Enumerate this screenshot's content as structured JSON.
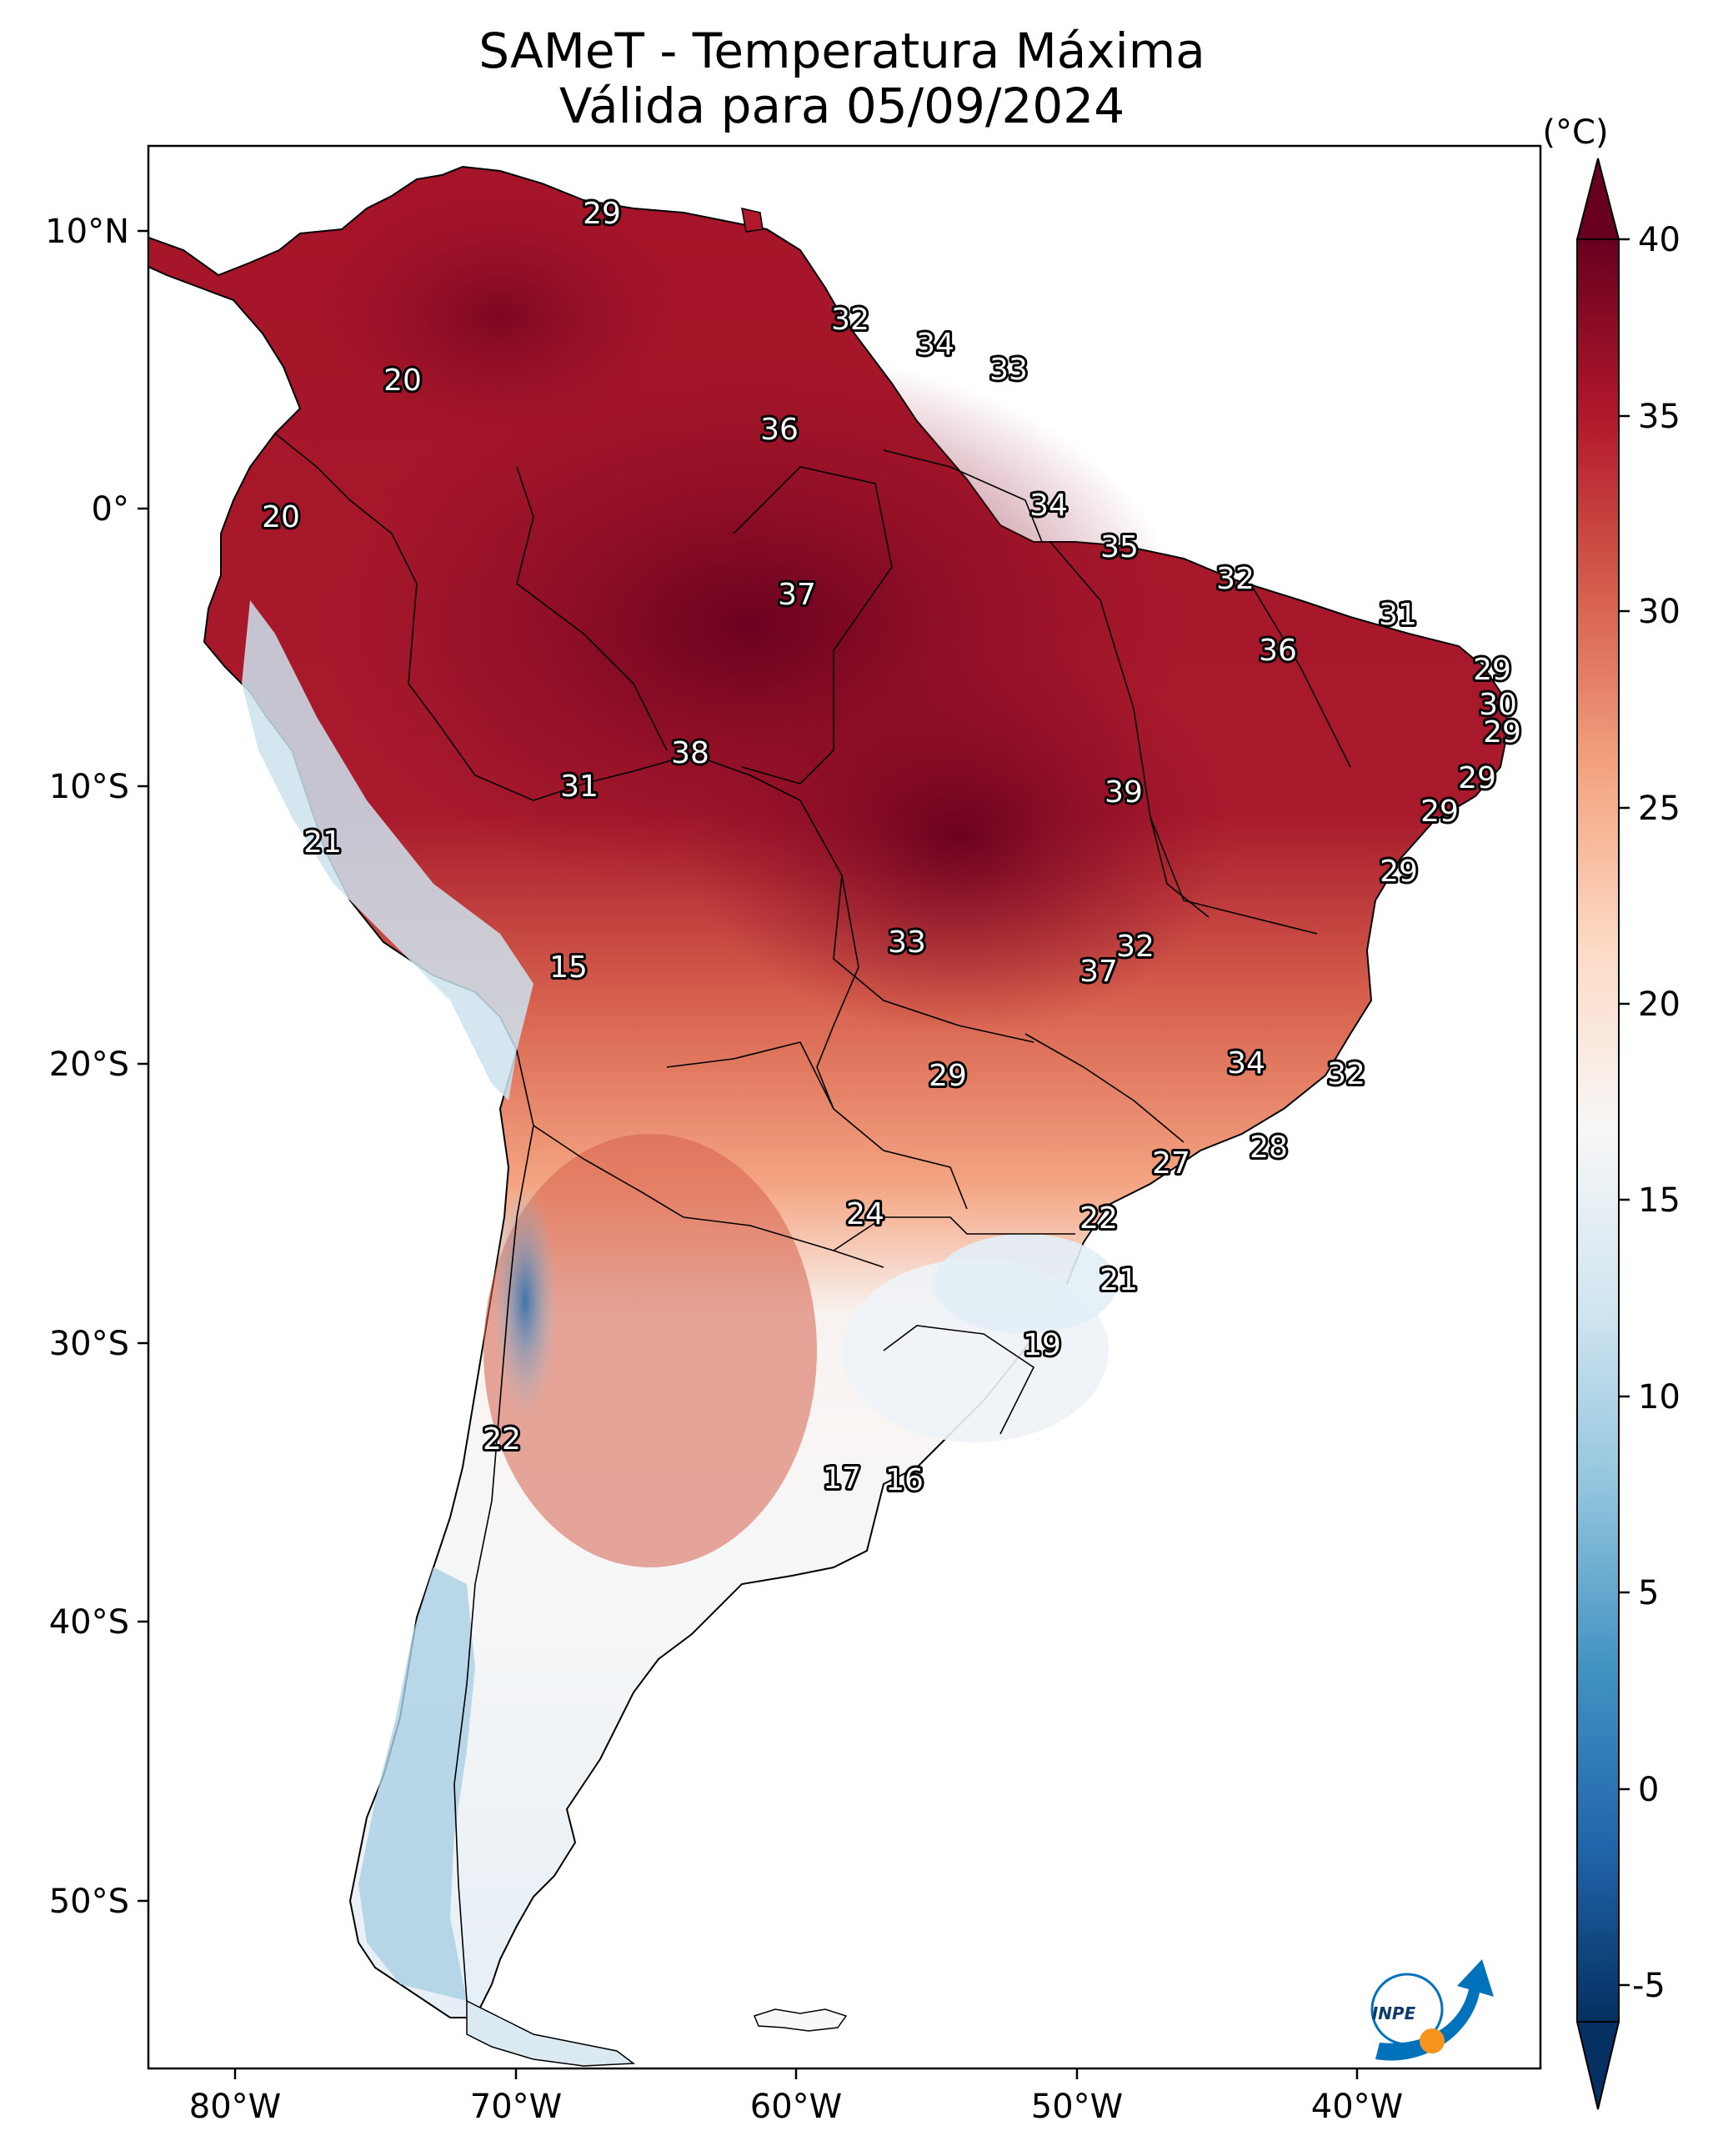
{
  "title_line1": "SAMeT - Temperatura Máxima",
  "title_line2": "Válida para 05/09/2024",
  "colorbar": {
    "unit": "(°C)",
    "ticks": [
      "40",
      "35",
      "30",
      "25",
      "20",
      "15",
      "10",
      "5",
      "0",
      "-5"
    ],
    "colors": [
      "#053061",
      "#2166ac",
      "#4393c3",
      "#92c5de",
      "#d1e5f0",
      "#f7f7f7",
      "#fddbc7",
      "#f4a582",
      "#d6604d",
      "#b2182b",
      "#67001f"
    ]
  },
  "axes": {
    "lon_labels": [
      "80°W",
      "70°W",
      "60°W",
      "50°W",
      "40°W"
    ],
    "lat_labels": [
      "10°N",
      "0°",
      "10°S",
      "20°S",
      "30°S",
      "40°S",
      "50°S"
    ]
  },
  "logo": {
    "text": "INPE",
    "colors": [
      "#0072bc",
      "#f7941d"
    ]
  },
  "temperature_labels": [
    "29",
    "20",
    "32",
    "34",
    "33",
    "36",
    "20",
    "34",
    "35",
    "37",
    "32",
    "31",
    "36",
    "29",
    "30",
    "29",
    "38",
    "31",
    "39",
    "29",
    "29",
    "21",
    "29",
    "33",
    "32",
    "15",
    "37",
    "29",
    "34",
    "32",
    "27",
    "28",
    "24",
    "22",
    "21",
    "19",
    "22",
    "17",
    "16"
  ]
}
